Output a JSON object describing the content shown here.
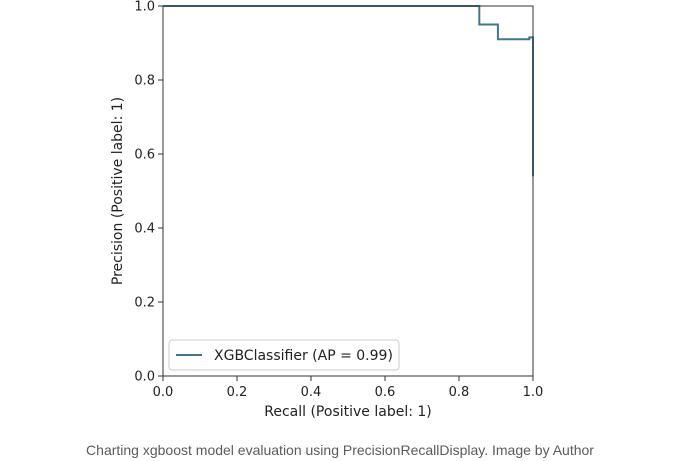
{
  "chart_data": {
    "type": "line",
    "title": "",
    "xlabel": "Recall (Positive label: 1)",
    "ylabel": "Precision (Positive label: 1)",
    "xlim": [
      0.0,
      1.0
    ],
    "ylim": [
      0.0,
      1.0
    ],
    "xticks": [
      "0.0",
      "0.2",
      "0.4",
      "0.6",
      "0.8",
      "1.0"
    ],
    "yticks": [
      "0.0",
      "0.2",
      "0.4",
      "0.6",
      "0.8",
      "1.0"
    ],
    "grid": false,
    "legend_position": "lower-left",
    "series": [
      {
        "name": "XGBClassifier (AP = 0.99)",
        "color": "#3f7690",
        "step": true,
        "x": [
          1.0,
          1.0,
          0.99,
          0.99,
          0.95,
          0.95,
          0.905,
          0.905,
          0.855,
          0.855,
          0.0
        ],
        "y": [
          0.54,
          0.915,
          0.915,
          0.91,
          0.91,
          0.91,
          0.91,
          0.95,
          0.95,
          1.0,
          1.0
        ]
      }
    ]
  },
  "caption": "Charting xgboost model evaluation using PrecisionRecallDisplay. Image by Author"
}
